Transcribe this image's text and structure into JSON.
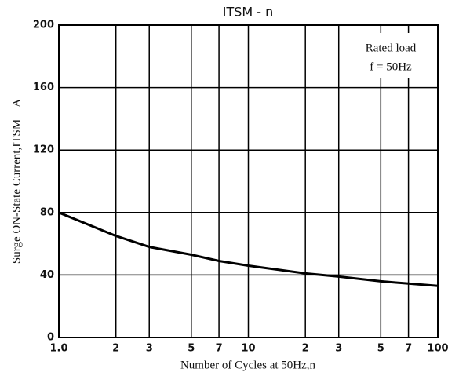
{
  "chart_data": {
    "type": "line",
    "title": "ITSM - n",
    "xlabel": "Number of Cycles at 50Hz,n",
    "ylabel": "Surge ON-State Current,ITSM − A",
    "annotations": [
      "Rated load",
      "f = 50Hz"
    ],
    "xscale": "log",
    "grid": true,
    "x": [
      1,
      2,
      3,
      5,
      7,
      10,
      20,
      30,
      50,
      70,
      100
    ],
    "series": [
      {
        "name": "ITSM",
        "color": "#000000",
        "values": [
          80,
          65,
          58,
          53,
          49,
          46,
          41,
          39,
          36,
          34.5,
          33
        ]
      }
    ],
    "xlim": [
      1,
      100
    ],
    "xticks": [
      {
        "value": 1,
        "label": "1.0"
      },
      2,
      3,
      5,
      7,
      10,
      {
        "value": 20,
        "label": "2"
      },
      {
        "value": 30,
        "label": "3"
      },
      {
        "value": 50,
        "label": "5"
      },
      {
        "value": 70,
        "label": "7"
      },
      100
    ],
    "ylim": [
      0,
      200
    ],
    "yticks": [
      0,
      40,
      80,
      120,
      160,
      200
    ]
  }
}
